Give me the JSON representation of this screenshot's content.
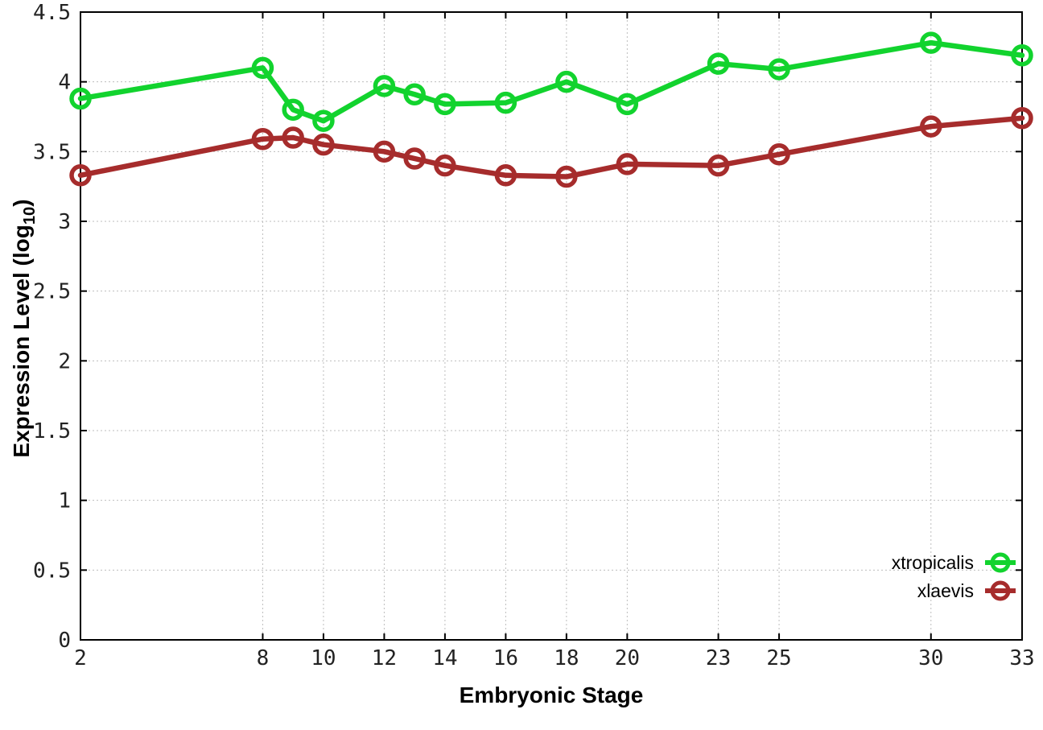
{
  "chart_data": {
    "type": "line",
    "x": [
      2,
      8,
      9,
      10,
      12,
      13,
      14,
      16,
      18,
      20,
      23,
      25,
      30,
      33
    ],
    "series": [
      {
        "name": "xtropicalis",
        "color": "#12d32e",
        "values": [
          3.88,
          4.1,
          3.8,
          3.72,
          3.97,
          3.91,
          3.84,
          3.85,
          4.0,
          3.84,
          4.13,
          4.09,
          4.28,
          4.19
        ]
      },
      {
        "name": "xlaevis",
        "color": "#a62c2c",
        "values": [
          3.33,
          3.59,
          3.6,
          3.55,
          3.5,
          3.45,
          3.4,
          3.33,
          3.32,
          3.41,
          3.4,
          3.48,
          3.68,
          3.74
        ]
      }
    ],
    "title": "",
    "xlabel": "Embryonic Stage",
    "ylabel": "Expression Level (log10)",
    "ylabel_pre": "Expression Level (log",
    "ylabel_sub": "10",
    "ylabel_post": ")",
    "xticks": [
      "2",
      "8",
      "10",
      "12",
      "14",
      "16",
      "18",
      "20",
      "23",
      "25",
      "30",
      "33"
    ],
    "yticks": [
      "0",
      "0.5",
      "1",
      "1.5",
      "2",
      "2.5",
      "3",
      "3.5",
      "4",
      "4.5"
    ],
    "xlim": [
      2,
      33
    ],
    "ylim": [
      0,
      4.5
    ],
    "grid": true,
    "grid_style": "dotted",
    "legend_position": "bottom-right",
    "marker": "open-circle",
    "colors": {
      "grid": "#bdbdbd",
      "axis": "#000000",
      "background": "#ffffff"
    }
  }
}
